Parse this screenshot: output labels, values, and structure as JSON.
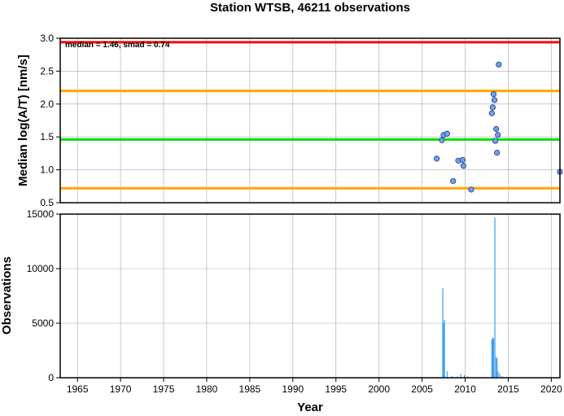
{
  "chart_data": [
    {
      "type": "scatter",
      "title": "Station WTSB, 46211 observations",
      "xlabel": "",
      "ylabel": "Median log(A/T) [nm/s]",
      "xlim": [
        1963,
        2021
      ],
      "ylim": [
        0.5,
        3.0
      ],
      "yticks": [
        "0.5",
        "1.0",
        "1.5",
        "2.0",
        "2.5",
        "3.0"
      ],
      "grid": true,
      "annotation": "median = 1.46, smad = 0.74",
      "reference_lines": [
        {
          "y": 2.94,
          "color": "#ff0000"
        },
        {
          "y": 2.2,
          "color": "#ffa500"
        },
        {
          "y": 1.46,
          "color": "#00e000"
        },
        {
          "y": 0.72,
          "color": "#ffa500"
        }
      ],
      "point_color": "#6fa0f0",
      "points": [
        {
          "x": 2006.7,
          "y": 1.17
        },
        {
          "x": 2007.3,
          "y": 1.45
        },
        {
          "x": 2007.5,
          "y": 1.53
        },
        {
          "x": 2007.9,
          "y": 1.55
        },
        {
          "x": 2008.6,
          "y": 0.83
        },
        {
          "x": 2009.2,
          "y": 1.14
        },
        {
          "x": 2009.7,
          "y": 1.15
        },
        {
          "x": 2009.8,
          "y": 1.06
        },
        {
          "x": 2010.7,
          "y": 0.7
        },
        {
          "x": 2013.1,
          "y": 1.86
        },
        {
          "x": 2013.2,
          "y": 1.95
        },
        {
          "x": 2013.3,
          "y": 2.15
        },
        {
          "x": 2013.4,
          "y": 2.06
        },
        {
          "x": 2013.5,
          "y": 1.44
        },
        {
          "x": 2013.6,
          "y": 1.62
        },
        {
          "x": 2013.7,
          "y": 1.26
        },
        {
          "x": 2013.8,
          "y": 1.53
        },
        {
          "x": 2013.9,
          "y": 2.6
        },
        {
          "x": 2021.0,
          "y": 0.97
        }
      ]
    },
    {
      "type": "bar",
      "xlabel": "Year",
      "ylabel": "Observations",
      "xlim": [
        1963,
        2021
      ],
      "ylim": [
        0,
        15000
      ],
      "yticks": [
        "0",
        "5000",
        "10000",
        "15000"
      ],
      "xticks": [
        "1965",
        "1970",
        "1975",
        "1980",
        "1985",
        "1990",
        "1995",
        "2000",
        "2005",
        "2010",
        "2015",
        "2020"
      ],
      "grid": true,
      "bar_color": "#3a9ef0",
      "bars": [
        {
          "x": 2007.4,
          "y": 8200
        },
        {
          "x": 2007.5,
          "y": 5000
        },
        {
          "x": 2007.6,
          "y": 5300
        },
        {
          "x": 2007.9,
          "y": 600
        },
        {
          "x": 2008.5,
          "y": 150
        },
        {
          "x": 2009.1,
          "y": 100
        },
        {
          "x": 2009.5,
          "y": 350
        },
        {
          "x": 2009.9,
          "y": 250
        },
        {
          "x": 2010.3,
          "y": 120
        },
        {
          "x": 2013.1,
          "y": 3500
        },
        {
          "x": 2013.2,
          "y": 3700
        },
        {
          "x": 2013.3,
          "y": 3600
        },
        {
          "x": 2013.45,
          "y": 14700
        },
        {
          "x": 2013.6,
          "y": 1900
        },
        {
          "x": 2013.7,
          "y": 1800
        },
        {
          "x": 2013.8,
          "y": 600
        },
        {
          "x": 2014.0,
          "y": 400
        },
        {
          "x": 2014.3,
          "y": 150
        }
      ]
    }
  ]
}
